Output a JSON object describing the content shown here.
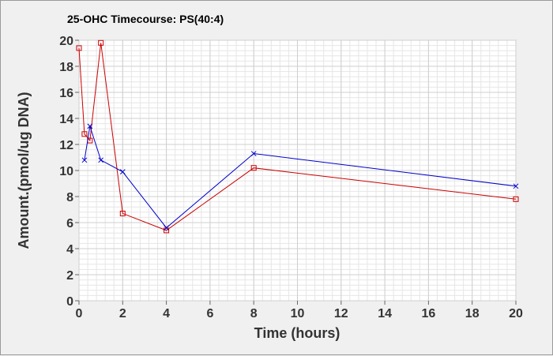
{
  "chart_data": {
    "type": "line",
    "title": "25-OHC Timecourse: PS(40:4)",
    "xlabel": "Time (hours)",
    "ylabel": "Amount.(pmol/ug DNA)",
    "xlim": [
      0,
      20
    ],
    "ylim": [
      0,
      20
    ],
    "xticks": [
      0,
      2,
      4,
      6,
      8,
      10,
      12,
      14,
      16,
      18,
      20
    ],
    "yticks": [
      0,
      2,
      4,
      6,
      8,
      10,
      12,
      14,
      16,
      18,
      20
    ],
    "grid": true,
    "legend": "none",
    "series": [
      {
        "color": "#cc0000",
        "marker": "square",
        "x": [
          0,
          0.25,
          0.5,
          1,
          2,
          4,
          8,
          20
        ],
        "y": [
          19.4,
          12.8,
          12.3,
          19.8,
          6.7,
          5.4,
          10.2,
          7.8
        ]
      },
      {
        "color": "#0000cc",
        "marker": "x",
        "x": [
          0.25,
          0.5,
          1,
          2,
          4,
          8,
          20
        ],
        "y": [
          10.8,
          13.4,
          10.8,
          9.9,
          5.6,
          11.3,
          8.8
        ]
      }
    ]
  }
}
